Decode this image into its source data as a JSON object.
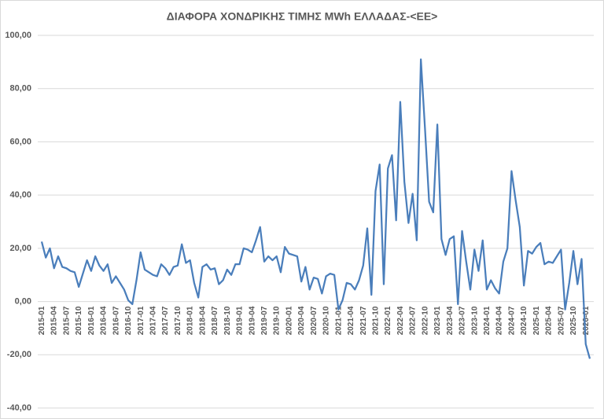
{
  "chart_data": {
    "type": "line",
    "title": "ΔΙΑΦΟΡΑ ΧΟΝΔΡΙΚΗΣ ΤΙΜΗΣ MWh ΕΛΛΑΔΑΣ-<ΕΕ>",
    "categories": [
      "2015-01",
      null,
      null,
      "2015-04",
      null,
      null,
      "2015-07",
      null,
      null,
      "2015-10",
      null,
      null,
      "2016-01",
      null,
      null,
      "2016-04",
      null,
      null,
      "2016-07",
      null,
      null,
      "2016-10",
      null,
      null,
      "2017-01",
      null,
      null,
      "2017-04",
      null,
      null,
      "2017-07",
      null,
      null,
      "2017-10",
      null,
      null,
      "2018-01",
      null,
      null,
      "2018-04",
      null,
      null,
      "2018-07",
      null,
      null,
      "2018-10",
      null,
      null,
      "2019-01",
      null,
      null,
      "2019-04",
      null,
      null,
      "2019-07",
      null,
      null,
      "2019-10",
      null,
      null,
      "2020-01",
      null,
      null,
      "2020-04",
      null,
      null,
      "2020-07",
      null,
      null,
      "2020-10",
      null,
      null,
      "2021-01",
      null,
      null,
      "2021-04",
      null,
      null,
      "2021-07",
      null,
      null,
      "2021-10",
      null,
      null,
      "2022-01",
      null,
      null,
      "2022-04",
      null,
      null,
      "2022-07",
      null,
      null,
      "2022-10",
      null,
      null,
      "2023-01",
      null,
      null,
      "2023-04",
      null,
      null,
      "2023-07",
      null,
      null,
      "2023-10",
      null,
      null,
      "2024-01",
      null,
      null,
      "2024-04",
      null,
      null,
      "2024-07",
      null,
      null,
      "2024-10",
      null,
      null,
      "2025-01",
      null,
      null,
      "2025-04",
      null,
      null,
      "2025-07",
      null,
      null,
      "2025-10",
      null,
      null,
      "2026-01",
      null
    ],
    "values": [
      22.5,
      16.5,
      20,
      12.5,
      17,
      13,
      12.5,
      11.5,
      11,
      5.5,
      10.5,
      15.5,
      11.5,
      17,
      13.5,
      11.5,
      14,
      7,
      9.5,
      7,
      4.5,
      0.5,
      -1,
      8,
      18.5,
      12,
      11,
      10,
      9.5,
      14,
      12.5,
      10,
      13,
      13.5,
      21.5,
      14.5,
      15.5,
      7,
      1.5,
      13,
      14,
      12,
      12.5,
      6.5,
      8,
      12,
      10,
      14,
      14,
      20,
      19.5,
      18.5,
      23,
      28,
      15,
      17,
      15.5,
      17,
      11,
      20.5,
      18,
      17.5,
      17,
      7.5,
      13,
      4.5,
      9,
      8.5,
      3,
      9.5,
      10.5,
      10,
      -3,
      0.5,
      7,
      6.5,
      4.5,
      8,
      13.5,
      27.5,
      2.5,
      41.5,
      51.5,
      6.5,
      50,
      55,
      30.5,
      75,
      45,
      29.5,
      40.5,
      23,
      91,
      65,
      37.5,
      33.5,
      66.5,
      23.5,
      17.5,
      23.5,
      24.5,
      -1,
      26.5,
      15,
      4.5,
      19.5,
      11.5,
      23,
      4.5,
      8,
      5,
      3,
      15,
      20,
      49,
      38,
      28,
      6,
      19,
      18,
      20.5,
      22,
      14,
      15,
      14.5,
      17,
      19.5,
      -3,
      7,
      19,
      6.5,
      16,
      -16,
      -21.5
    ],
    "color": "#4a7ebb",
    "ylim": [
      -40,
      100
    ],
    "yticks": [
      {
        "value": -40,
        "label": "-40,00"
      },
      {
        "value": -20,
        "label": "-20,00"
      },
      {
        "value": 0,
        "label": "0,00"
      },
      {
        "value": 20,
        "label": "20,00"
      },
      {
        "value": 40,
        "label": "40,00"
      },
      {
        "value": 60,
        "label": "60,00"
      },
      {
        "value": 80,
        "label": "80,00"
      },
      {
        "value": 100,
        "label": "100,00"
      }
    ],
    "grid": true
  }
}
